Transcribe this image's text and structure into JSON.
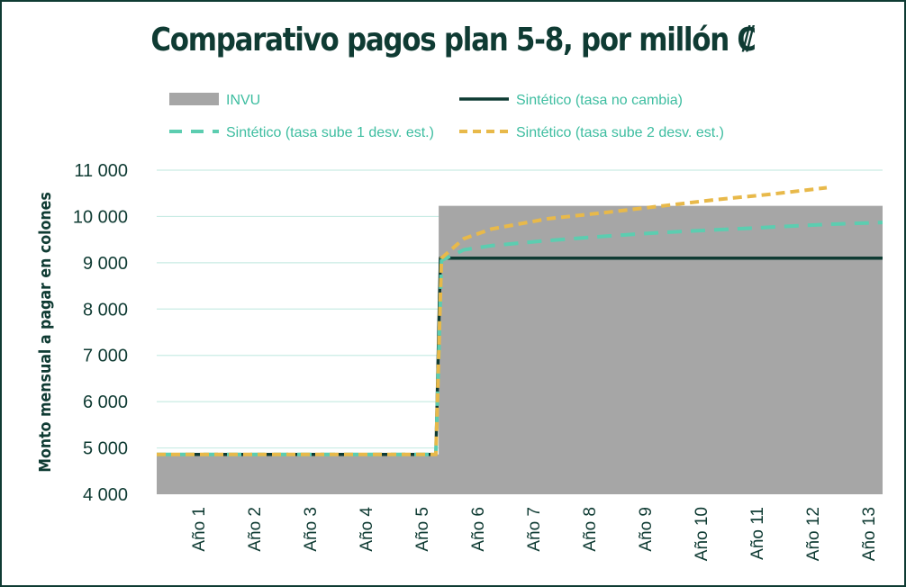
{
  "chart_data": {
    "type": "area",
    "title": "Comparativo pagos plan 5-8, por millón ₡",
    "ylabel": "Monto mensual a pagar en colones",
    "xlabel": "",
    "ylim": [
      4000,
      11000
    ],
    "yticks": [
      4000,
      5000,
      6000,
      7000,
      8000,
      9000,
      10000,
      11000
    ],
    "ytick_labels": [
      "4 000",
      "5 000",
      "6 000",
      "7 000",
      "8 000",
      "9 000",
      "10 000",
      "11 000"
    ],
    "categories": [
      "Año 1",
      "Año 2",
      "Año 3",
      "Año 4",
      "Año 5",
      "Año 6",
      "Año 7",
      "Año 8",
      "Año 9",
      "Año 10",
      "Año 11",
      "Año 12",
      "Año 13"
    ],
    "grid": true,
    "legend_position": "top",
    "series": [
      {
        "name": "INVU",
        "style": "area",
        "color": "#a6a6a6",
        "x": [
          0,
          5.05,
          5.05,
          13
        ],
        "y": [
          4860,
          4860,
          10230,
          10230
        ]
      },
      {
        "name": "Sintético (tasa no cambia)",
        "style": "solid",
        "color": "#0f3b33",
        "x": [
          0,
          5,
          5.08,
          13
        ],
        "y": [
          4860,
          4860,
          9100,
          9100
        ]
      },
      {
        "name": "Sintético (tasa sube 1 desv. est.)",
        "style": "dashed",
        "color": "#5ccdb0",
        "x": [
          0,
          5,
          5.1,
          5.5,
          6,
          7,
          8,
          9,
          10,
          11,
          12,
          13
        ],
        "y": [
          4860,
          4860,
          9050,
          9280,
          9370,
          9480,
          9570,
          9650,
          9710,
          9770,
          9830,
          9870
        ]
      },
      {
        "name": "Sintético (tasa sube 2 desv. est.)",
        "style": "dotted",
        "color": "#e8b94a",
        "x": [
          0,
          5,
          5.1,
          5.5,
          6,
          7,
          8,
          9,
          10,
          11,
          12
        ],
        "y": [
          4860,
          4860,
          9100,
          9520,
          9730,
          9950,
          10080,
          10220,
          10360,
          10480,
          10620
        ]
      }
    ]
  }
}
